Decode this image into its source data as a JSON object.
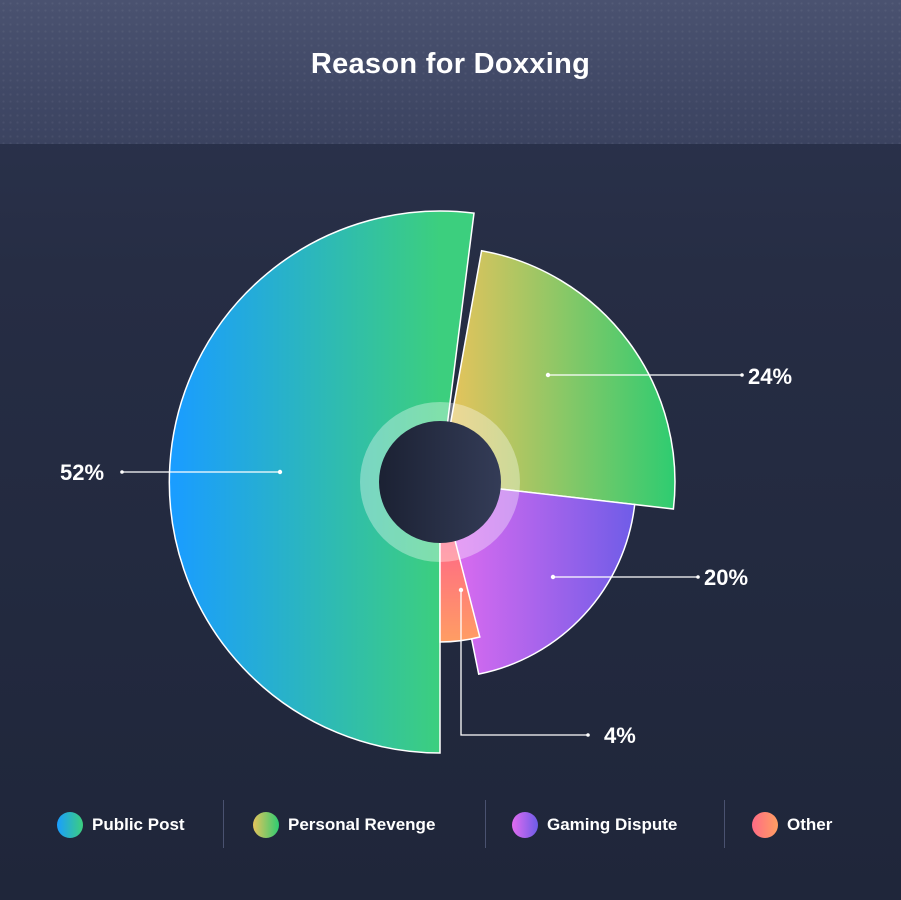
{
  "title": "Reason for Doxxing",
  "colors": {
    "public_post": [
      "#1a9dff",
      "#3ccf7e"
    ],
    "personal_revenge": [
      "#e6c35c",
      "#2ecc71"
    ],
    "gaming_dispute": [
      "#e26cf0",
      "#6c5ce7"
    ],
    "other": [
      "#ff6b85",
      "#ff9f62"
    ]
  },
  "chart_data": {
    "type": "pie",
    "title": "Reason for Doxxing",
    "categories": [
      "Public Post",
      "Personal Revenge",
      "Gaming Dispute",
      "Other"
    ],
    "values": [
      52,
      24,
      20,
      4
    ],
    "value_labels": [
      "52%",
      "24%",
      "20%",
      "4%"
    ],
    "legend_position": "bottom"
  },
  "legend": [
    {
      "label": "Public Post"
    },
    {
      "label": "Personal Revenge"
    },
    {
      "label": "Gaming Dispute"
    },
    {
      "label": "Other"
    }
  ]
}
